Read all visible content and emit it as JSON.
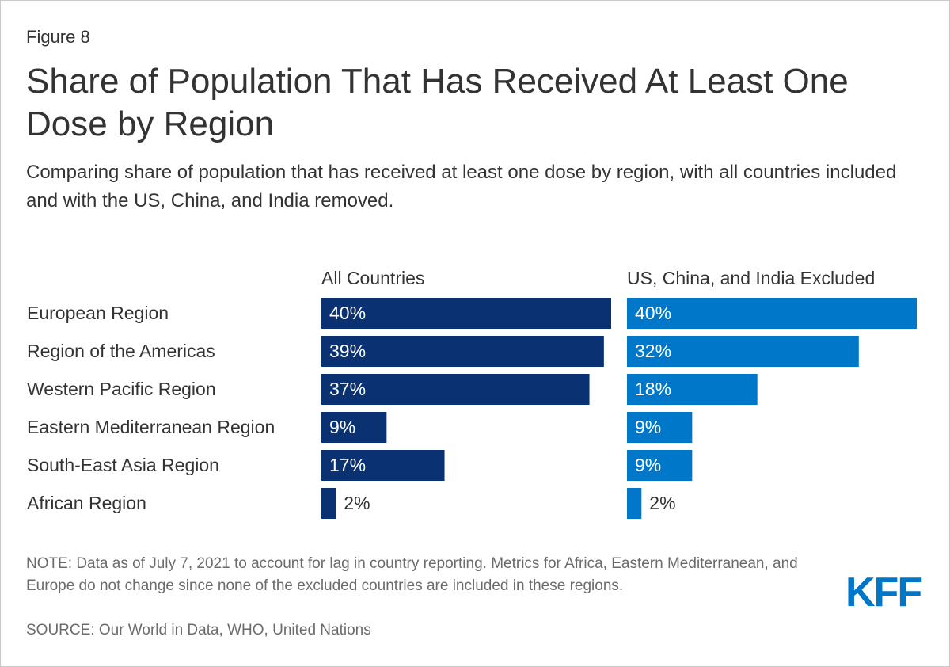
{
  "figure_label": "Figure 8",
  "title": "Share of Population That Has Received At Least One Dose by Region",
  "subtitle": "Comparing share of population that has received at least one dose by region, with all countries included and with the US, China, and India removed.",
  "note": "NOTE: Data as of July 7, 2021 to account for lag in country reporting. Metrics for Africa, Eastern Mediterranean, and Europe do not change since none of the excluded countries are included in these regions.",
  "source": "SOURCE: Our World in Data, WHO, United Nations",
  "logo": "KFF",
  "colors": {
    "all": "#0a3273",
    "excluded": "#0077c8",
    "brand": "#0076c8"
  },
  "chart_data": {
    "type": "bar",
    "orientation": "horizontal",
    "title": "Share of Population That Has Received At Least One Dose by Region",
    "categories": [
      "European Region",
      "Region of the Americas",
      "Western Pacific Region",
      "Eastern Mediterranean Region",
      "South-East Asia Region",
      "African Region"
    ],
    "series": [
      {
        "name": "All Countries",
        "values": [
          40,
          39,
          37,
          9,
          17,
          2
        ],
        "labels": [
          "40%",
          "39%",
          "37%",
          "9%",
          "17%",
          "2%"
        ]
      },
      {
        "name": "US, China, and India Excluded",
        "values": [
          40,
          32,
          18,
          9,
          9,
          2
        ],
        "labels": [
          "40%",
          "32%",
          "18%",
          "9%",
          "9%",
          "2%"
        ]
      }
    ],
    "xlim": [
      0,
      40
    ],
    "unit": "%",
    "grid": false
  }
}
